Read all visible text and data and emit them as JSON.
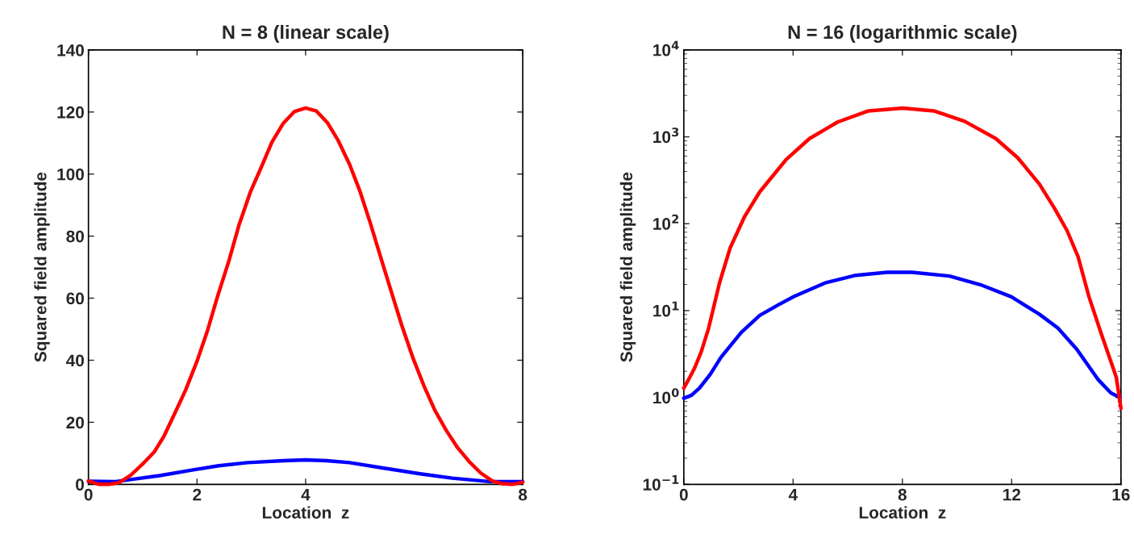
{
  "chart_data": [
    {
      "type": "line",
      "title": "N = 8 (linear scale)",
      "xlabel": "Location  z",
      "ylabel": "Squared field amplitude",
      "xlim": [
        0,
        8
      ],
      "ylim": [
        0,
        140
      ],
      "xticks": [
        0,
        2,
        4,
        8
      ],
      "yticks": [
        0,
        20,
        40,
        60,
        80,
        100,
        120,
        140
      ],
      "line_style": "solid",
      "series": [
        {
          "color": "#ff0000",
          "x": [
            0,
            0.2,
            0.38,
            0.57,
            0.78,
            0.99,
            1.21,
            1.39,
            1.58,
            1.79,
            2.0,
            2.19,
            2.37,
            2.59,
            2.77,
            2.98,
            3.2,
            3.38,
            3.59,
            3.79,
            4.0,
            4.2,
            4.4,
            4.6,
            4.81,
            5.0,
            5.19,
            5.4,
            5.58,
            5.77,
            5.98,
            6.19,
            6.38,
            6.59,
            6.8,
            7.02,
            7.23,
            7.44,
            7.63,
            7.81,
            8.0
          ],
          "values": [
            1.1,
            0,
            0,
            0.6,
            3.0,
            6.4,
            10.4,
            15.5,
            22.5,
            30.4,
            39.7,
            49.4,
            60.1,
            72.2,
            83.4,
            94.1,
            102.9,
            110.3,
            116.4,
            120.1,
            121.3,
            120.3,
            116.6,
            110.8,
            103.1,
            94.5,
            84.3,
            72.2,
            62.0,
            51.3,
            40.6,
            31.3,
            23.9,
            17.4,
            11.8,
            7.2,
            3.6,
            1.1,
            0.2,
            0,
            0.7
          ]
        },
        {
          "color": "#0000ff",
          "x": [
            0,
            0.5,
            0.8,
            1.31,
            1.97,
            2.4,
            2.93,
            3.59,
            4.0,
            4.39,
            4.81,
            5.42,
            6.11,
            6.7,
            7.39,
            8.0
          ],
          "values": [
            1.0,
            0.9,
            1.6,
            2.8,
            4.8,
            6.0,
            7.0,
            7.6,
            7.9,
            7.6,
            7.0,
            5.3,
            3.4,
            2.0,
            0.9,
            0.9
          ]
        }
      ]
    },
    {
      "type": "line",
      "title": "N = 16 (logarithmic scale)",
      "xlabel": "Location  z",
      "ylabel": "Squared field amplitude",
      "log": "y",
      "xlim": [
        0,
        16
      ],
      "ylim": [
        0.1,
        10000
      ],
      "xticks": [
        0,
        4,
        8,
        12,
        16
      ],
      "yticks": [
        {
          "value": 0.1,
          "label": "10$^{−1}$"
        },
        {
          "value": 1,
          "label": "10$^{0}$"
        },
        {
          "value": 10,
          "label": "10$^{1}$"
        },
        {
          "value": 100,
          "label": "10$^{2}$"
        },
        {
          "value": 1000,
          "label": "10$^{3}$"
        },
        {
          "value": 10000,
          "label": "10$^{4}$"
        }
      ],
      "line_style": "solid",
      "series": [
        {
          "color": "#ff0000",
          "x": [
            0,
            0.17,
            0.4,
            0.63,
            0.91,
            1.31,
            1.7,
            2.22,
            2.78,
            3.75,
            4.6,
            5.63,
            6.76,
            8.01,
            9.15,
            10.28,
            11.42,
            12.22,
            13.01,
            13.58,
            14.03,
            14.43,
            14.83,
            15.28,
            15.63,
            15.83,
            16.0
          ],
          "values": [
            1.28,
            1.6,
            2.2,
            3.3,
            6.3,
            21,
            53,
            120,
            233,
            550,
            955,
            1480,
            1990,
            2140,
            1990,
            1510,
            955,
            575,
            288,
            148,
            83,
            41.7,
            14.4,
            5.4,
            2.6,
            1.7,
            0.75
          ]
        },
        {
          "color": "#0000ff",
          "x": [
            0,
            0.28,
            0.57,
            0.97,
            1.36,
            2.1,
            2.78,
            3.47,
            4.03,
            5.17,
            6.3,
            7.44,
            8.35,
            9.72,
            10.85,
            11.99,
            13.01,
            13.69,
            14.38,
            15.17,
            15.63,
            15.97
          ],
          "values": [
            0.98,
            1.06,
            1.28,
            1.85,
            2.9,
            5.6,
            8.8,
            11.7,
            14.5,
            20.8,
            25.5,
            27.6,
            27.6,
            25.0,
            19.9,
            14.4,
            9.1,
            6.3,
            3.6,
            1.6,
            1.13,
            1.0
          ]
        }
      ]
    }
  ]
}
